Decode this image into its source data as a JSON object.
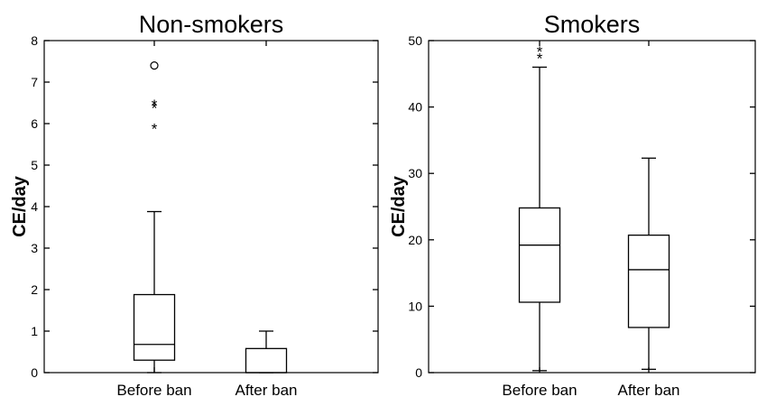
{
  "chart_data": [
    {
      "type": "box",
      "title": "Non-smokers",
      "ylabel": "CE/day",
      "xlabel": "",
      "ylim": [
        0,
        8
      ],
      "yticks": [
        "0",
        "1",
        "2",
        "3",
        "4",
        "5",
        "6",
        "7",
        "8"
      ],
      "categories": [
        "Before ban",
        "After ban"
      ],
      "boxes": [
        {
          "category": "Before ban",
          "whisker_low": 0,
          "q1": 0.3,
          "median": 0.68,
          "q3": 1.88,
          "whisker_high": 3.88,
          "outliers": [
            {
              "value": 7.4,
              "marker": "o"
            },
            {
              "value": 6.48,
              "marker": "*"
            },
            {
              "value": 6.4,
              "marker": "*"
            },
            {
              "value": 5.9,
              "marker": "*"
            }
          ]
        },
        {
          "category": "After ban",
          "whisker_low": 0,
          "q1": 0,
          "median": 0,
          "q3": 0.58,
          "whisker_high": 1.0,
          "outliers": []
        }
      ]
    },
    {
      "type": "box",
      "title": "Smokers",
      "ylabel": "CE/day",
      "xlabel": "",
      "ylim": [
        0,
        50
      ],
      "yticks": [
        "0",
        "10",
        "20",
        "30",
        "40",
        "50"
      ],
      "categories": [
        "Before ban",
        "After ban"
      ],
      "boxes": [
        {
          "category": "Before ban",
          "whisker_low": 0.3,
          "q1": 10.6,
          "median": 19.2,
          "q3": 24.8,
          "whisker_high": 46,
          "outliers": [
            {
              "value": 48.5,
              "marker": "*"
            },
            {
              "value": 47.5,
              "marker": "*"
            }
          ]
        },
        {
          "category": "After ban",
          "whisker_low": 0.5,
          "q1": 6.8,
          "median": 15.5,
          "q3": 20.7,
          "whisker_high": 32.3,
          "outliers": []
        }
      ]
    }
  ]
}
